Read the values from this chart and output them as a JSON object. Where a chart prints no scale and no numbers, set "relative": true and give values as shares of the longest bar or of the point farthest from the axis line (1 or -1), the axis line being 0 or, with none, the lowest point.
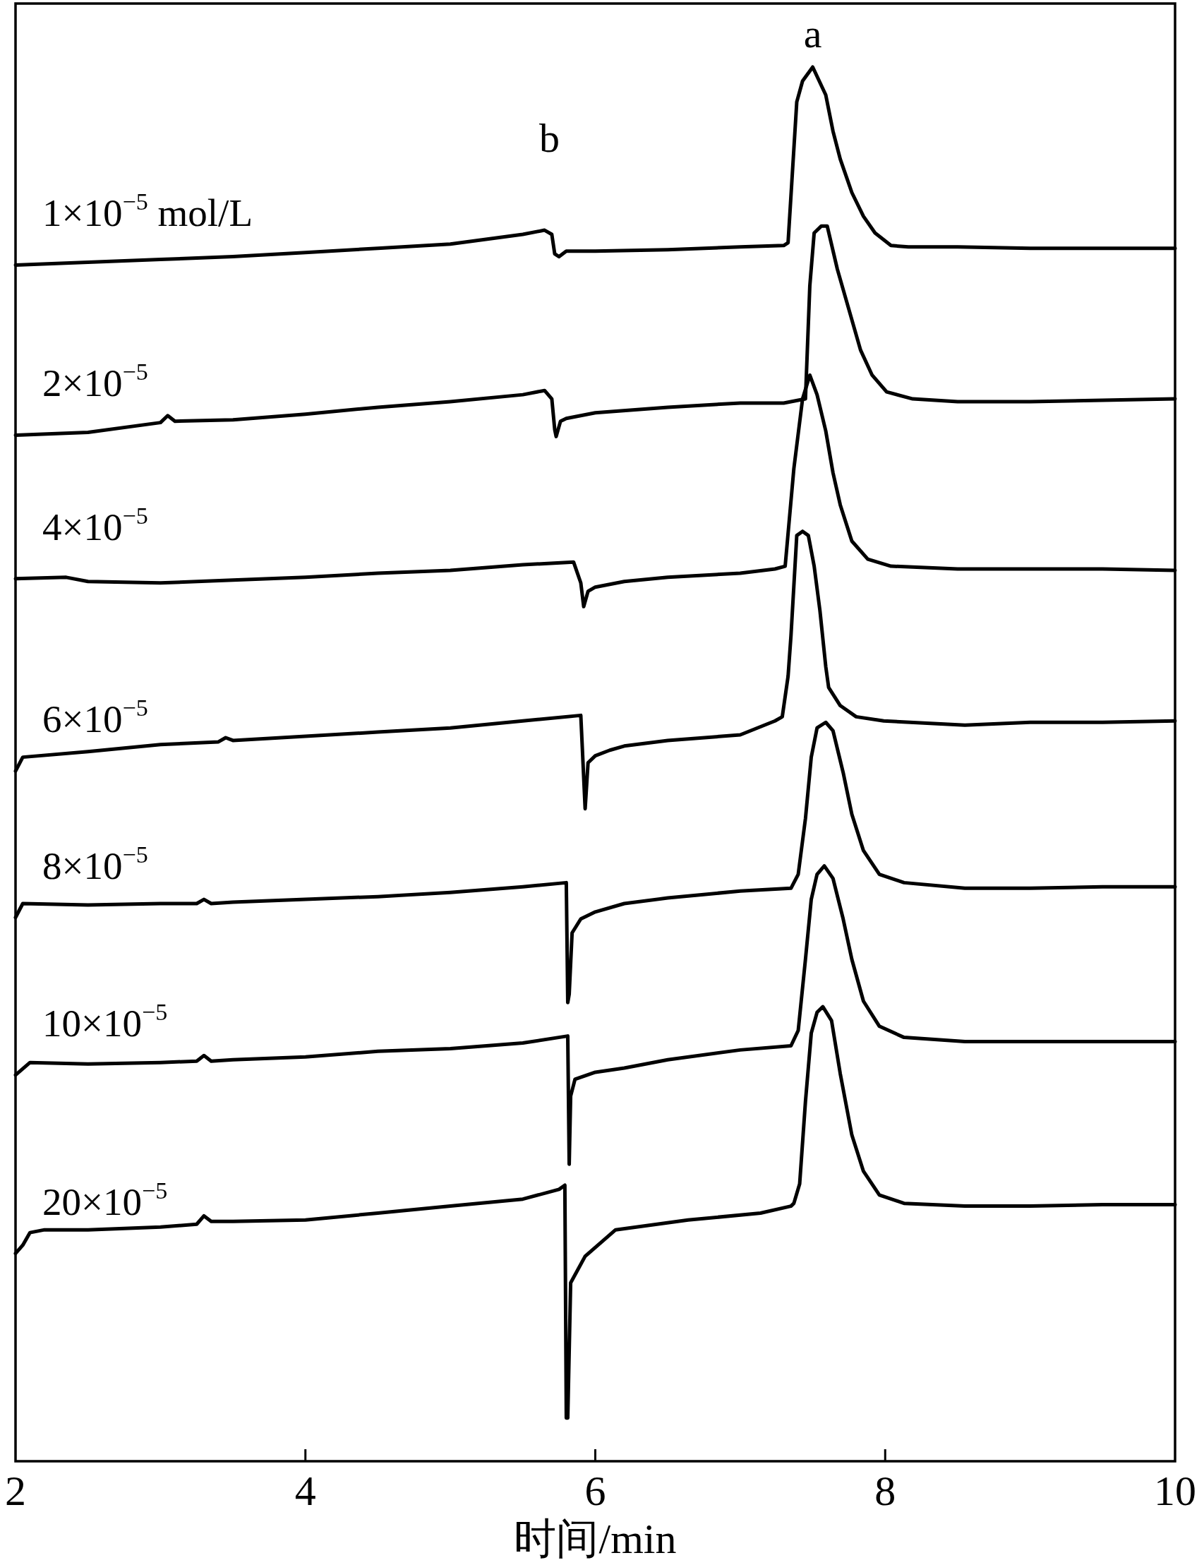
{
  "chart_data": {
    "type": "line",
    "relative": true,
    "xlabel": "时间/min",
    "xlim": [
      2,
      10
    ],
    "xticks": [
      2,
      4,
      6,
      8,
      10
    ],
    "line_style": "solid",
    "annotations": [
      {
        "text": "a",
        "x": 7.5,
        "y": 1.0
      },
      "b"
    ],
    "series": [
      {
        "name": "1×10$^{−5}$ mol/L",
        "color": "#000000",
        "x": [
          2.0,
          2.5,
          3.0,
          3.5,
          4.0,
          4.5,
          5.0,
          5.5,
          5.65,
          5.7,
          5.72,
          5.75,
          5.8,
          6.0,
          6.5,
          7.0,
          7.3,
          7.33,
          7.39,
          7.43,
          7.5,
          7.59,
          7.64,
          7.69,
          7.77,
          7.85,
          7.93,
          8.04,
          8.16,
          8.5,
          9.0,
          9.5,
          10.0
        ],
        "values": [
          0.858,
          0.86,
          0.862,
          0.864,
          0.867,
          0.87,
          0.873,
          0.88,
          0.883,
          0.88,
          0.866,
          0.864,
          0.868,
          0.868,
          0.869,
          0.871,
          0.872,
          0.874,
          0.975,
          0.99,
          1.0,
          0.98,
          0.954,
          0.934,
          0.91,
          0.893,
          0.881,
          0.872,
          0.871,
          0.871,
          0.87,
          0.87,
          0.87
        ]
      },
      {
        "name": "2×10$^{−5}$",
        "color": "#000000",
        "x": [
          2.0,
          2.5,
          3.0,
          3.05,
          3.1,
          3.5,
          4.0,
          4.5,
          5.0,
          5.5,
          5.65,
          5.7,
          5.72,
          5.73,
          5.76,
          5.8,
          6.0,
          6.5,
          7.0,
          7.3,
          7.45,
          7.48,
          7.51,
          7.56,
          7.6,
          7.67,
          7.75,
          7.83,
          7.91,
          8.01,
          8.19,
          8.5,
          9.0,
          9.5,
          10.0
        ],
        "values": [
          0.736,
          0.738,
          0.745,
          0.75,
          0.746,
          0.747,
          0.751,
          0.756,
          0.76,
          0.765,
          0.768,
          0.762,
          0.74,
          0.735,
          0.746,
          0.748,
          0.752,
          0.756,
          0.759,
          0.759,
          0.762,
          0.843,
          0.881,
          0.886,
          0.886,
          0.855,
          0.826,
          0.797,
          0.779,
          0.767,
          0.762,
          0.76,
          0.76,
          0.761,
          0.762
        ]
      },
      {
        "name": "4×10$^{−5}$",
        "color": "#000000",
        "x": [
          2.0,
          2.35,
          2.5,
          3.0,
          3.5,
          4.0,
          4.5,
          5.0,
          5.5,
          5.85,
          5.9,
          5.92,
          5.95,
          6.0,
          6.2,
          6.5,
          7.0,
          7.24,
          7.31,
          7.37,
          7.43,
          7.48,
          7.53,
          7.59,
          7.64,
          7.69,
          7.77,
          7.88,
          8.04,
          8.5,
          9.0,
          9.5,
          10.0
        ],
        "values": [
          0.633,
          0.634,
          0.631,
          0.63,
          0.632,
          0.634,
          0.637,
          0.639,
          0.643,
          0.645,
          0.63,
          0.613,
          0.624,
          0.627,
          0.631,
          0.634,
          0.637,
          0.64,
          0.642,
          0.712,
          0.762,
          0.779,
          0.765,
          0.739,
          0.709,
          0.686,
          0.66,
          0.647,
          0.642,
          0.64,
          0.64,
          0.64,
          0.639
        ]
      },
      {
        "name": "6×10$^{−5}$",
        "color": "#000000",
        "x": [
          2.0,
          2.05,
          2.5,
          3.0,
          3.4,
          3.45,
          3.5,
          4.0,
          4.5,
          5.0,
          5.5,
          5.9,
          5.93,
          5.95,
          6.0,
          6.1,
          6.2,
          6.5,
          7.0,
          7.24,
          7.29,
          7.33,
          7.35,
          7.39,
          7.43,
          7.47,
          7.51,
          7.55,
          7.59,
          7.61,
          7.69,
          7.8,
          7.99,
          8.55,
          9.0,
          9.5,
          10.0
        ],
        "values": [
          0.495,
          0.505,
          0.509,
          0.514,
          0.516,
          0.519,
          0.517,
          0.52,
          0.523,
          0.526,
          0.531,
          0.535,
          0.468,
          0.501,
          0.506,
          0.51,
          0.513,
          0.517,
          0.521,
          0.531,
          0.534,
          0.563,
          0.592,
          0.664,
          0.667,
          0.664,
          0.642,
          0.61,
          0.57,
          0.555,
          0.542,
          0.534,
          0.531,
          0.528,
          0.53,
          0.53,
          0.531
        ]
      },
      {
        "name": "8×10$^{−5}$",
        "color": "#000000",
        "x": [
          2.0,
          2.05,
          2.5,
          3.0,
          3.25,
          3.3,
          3.35,
          3.5,
          4.0,
          4.5,
          5.0,
          5.5,
          5.8,
          5.81,
          5.82,
          5.84,
          5.9,
          6.0,
          6.2,
          6.5,
          7.0,
          7.35,
          7.4,
          7.45,
          7.49,
          7.53,
          7.59,
          7.64,
          7.71,
          7.77,
          7.85,
          7.96,
          8.13,
          8.55,
          9.0,
          9.5,
          10.0
        ],
        "values": [
          0.39,
          0.4,
          0.399,
          0.4,
          0.4,
          0.403,
          0.4,
          0.401,
          0.403,
          0.405,
          0.408,
          0.412,
          0.415,
          0.329,
          0.335,
          0.379,
          0.389,
          0.394,
          0.4,
          0.404,
          0.409,
          0.411,
          0.421,
          0.461,
          0.505,
          0.526,
          0.53,
          0.524,
          0.494,
          0.464,
          0.438,
          0.421,
          0.415,
          0.411,
          0.411,
          0.412,
          0.412
        ]
      },
      {
        "name": "10×10$^{−5}$",
        "color": "#000000",
        "x": [
          2.0,
          2.1,
          2.5,
          3.0,
          3.25,
          3.3,
          3.35,
          3.5,
          4.0,
          4.5,
          5.0,
          5.5,
          5.81,
          5.82,
          5.83,
          5.86,
          6.0,
          6.2,
          6.5,
          7.0,
          7.35,
          7.4,
          7.45,
          7.49,
          7.53,
          7.58,
          7.64,
          7.71,
          7.77,
          7.85,
          7.96,
          8.13,
          8.55,
          9.0,
          9.5,
          10.0
        ],
        "values": [
          0.277,
          0.286,
          0.285,
          0.286,
          0.287,
          0.291,
          0.287,
          0.288,
          0.29,
          0.294,
          0.296,
          0.3,
          0.305,
          0.213,
          0.262,
          0.274,
          0.279,
          0.282,
          0.288,
          0.295,
          0.298,
          0.309,
          0.36,
          0.403,
          0.421,
          0.427,
          0.418,
          0.389,
          0.36,
          0.33,
          0.312,
          0.304,
          0.301,
          0.301,
          0.301,
          0.301
        ]
      },
      {
        "name": "20×10$^{−5}$",
        "color": "#000000",
        "x": [
          2.0,
          2.05,
          2.1,
          2.2,
          2.5,
          3.0,
          3.25,
          3.3,
          3.35,
          3.5,
          4.0,
          4.5,
          5.0,
          5.5,
          5.75,
          5.79,
          5.8,
          5.81,
          5.83,
          5.93,
          6.14,
          6.64,
          7.14,
          7.35,
          7.37,
          7.41,
          7.45,
          7.49,
          7.53,
          7.57,
          7.63,
          7.69,
          7.77,
          7.85,
          7.96,
          8.13,
          8.55,
          9.0,
          9.5,
          10.0
        ],
        "values": [
          0.149,
          0.155,
          0.164,
          0.166,
          0.166,
          0.168,
          0.17,
          0.176,
          0.172,
          0.172,
          0.173,
          0.178,
          0.183,
          0.188,
          0.195,
          0.198,
          0.031,
          0.031,
          0.128,
          0.147,
          0.166,
          0.173,
          0.178,
          0.183,
          0.185,
          0.199,
          0.258,
          0.307,
          0.322,
          0.326,
          0.316,
          0.278,
          0.234,
          0.208,
          0.191,
          0.185,
          0.183,
          0.183,
          0.184,
          0.184
        ]
      }
    ]
  }
}
